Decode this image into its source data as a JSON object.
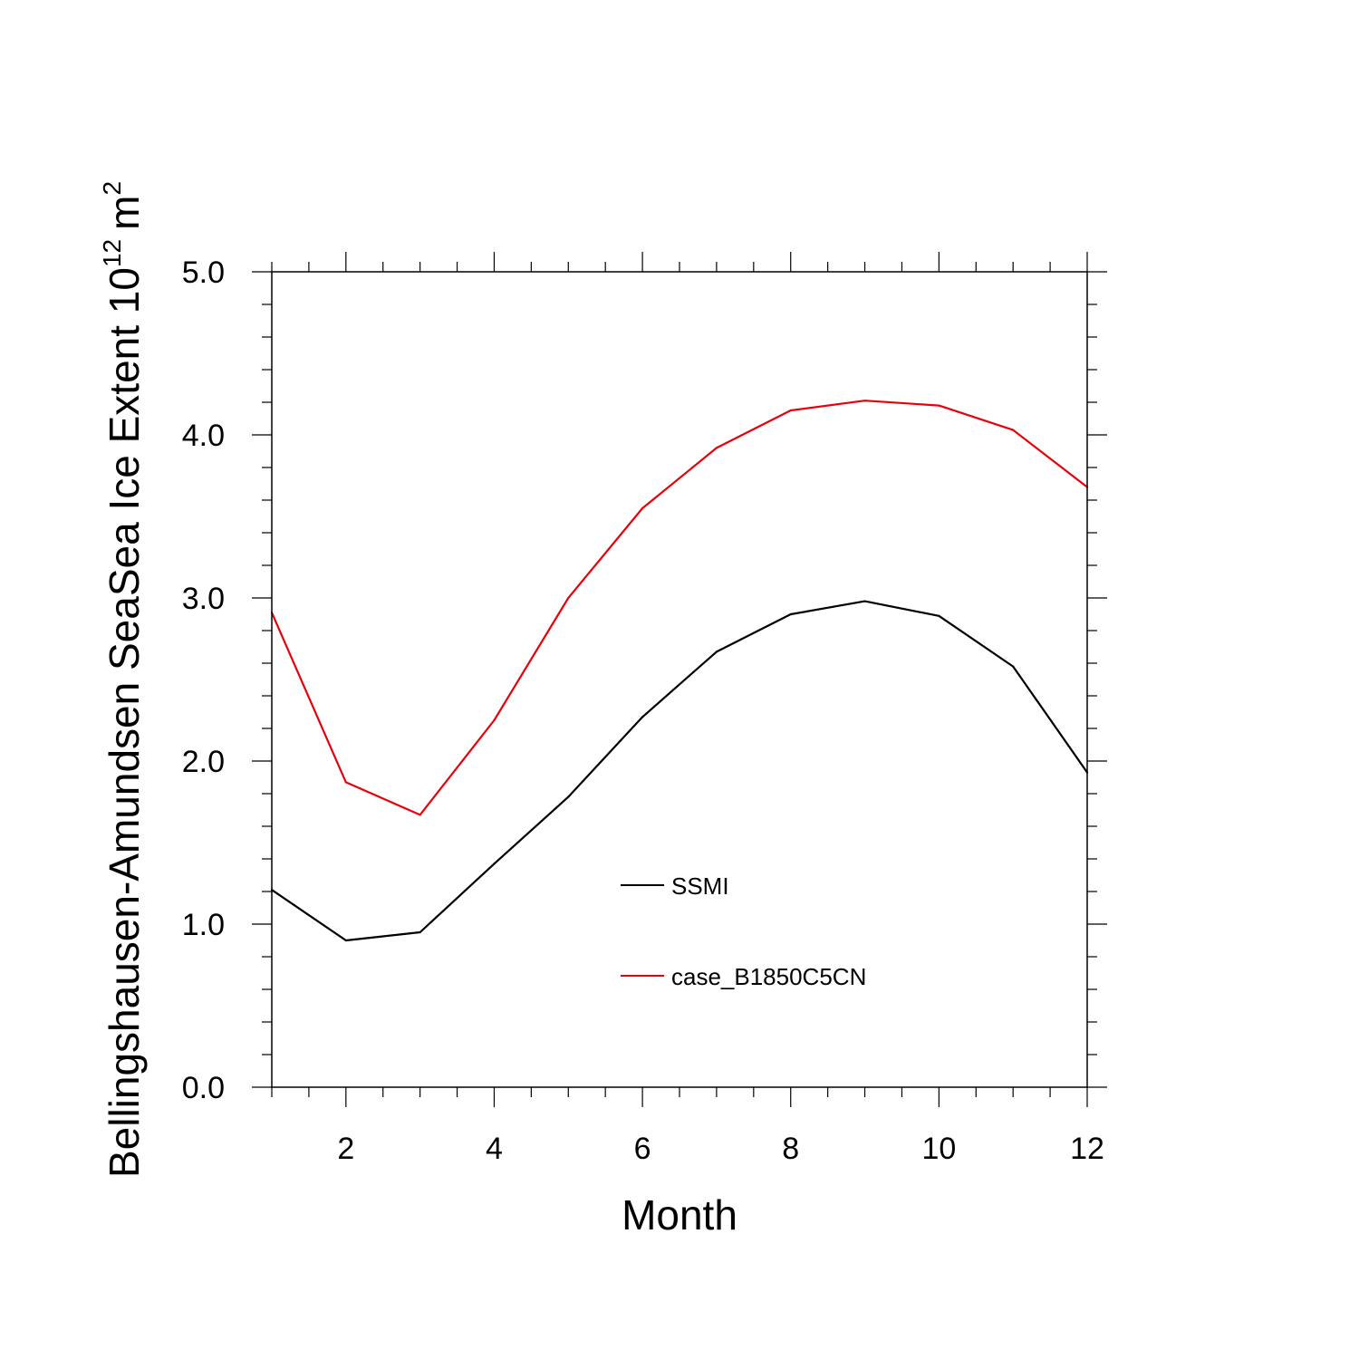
{
  "chart_data": {
    "type": "line",
    "title": "",
    "xlabel": "Month",
    "ylabel_main": "Bellingshausen-Amundsen SeaSea Ice Extent 10",
    "ylabel_exp": "12",
    "ylabel_unit": "m",
    "ylabel_unit_exp": "2",
    "xlim": [
      1,
      12
    ],
    "ylim": [
      0,
      5
    ],
    "x_major_ticks": [
      2,
      4,
      6,
      8,
      10,
      12
    ],
    "x_tick_labels": [
      "2",
      "4",
      "6",
      "8",
      "10",
      "12"
    ],
    "y_major_ticks": [
      0,
      1,
      2,
      3,
      4,
      5
    ],
    "y_tick_labels": [
      "0.0",
      "1.0",
      "2.0",
      "3.0",
      "4.0",
      "5.0"
    ],
    "grid": false,
    "legend_position": "center-right inside",
    "x": [
      1,
      2,
      3,
      4,
      5,
      6,
      7,
      8,
      9,
      10,
      11,
      12
    ],
    "series": [
      {
        "name": "SSMI",
        "color": "#000000",
        "values": [
          1.21,
          0.9,
          0.95,
          1.37,
          1.78,
          2.27,
          2.67,
          2.9,
          2.98,
          2.89,
          2.58,
          1.93
        ]
      },
      {
        "name": "case_B1850C5CN",
        "color": "#e8000b",
        "values": [
          2.91,
          1.87,
          1.67,
          2.25,
          3.0,
          3.55,
          3.92,
          4.15,
          4.21,
          4.18,
          4.03,
          3.68
        ]
      }
    ]
  }
}
